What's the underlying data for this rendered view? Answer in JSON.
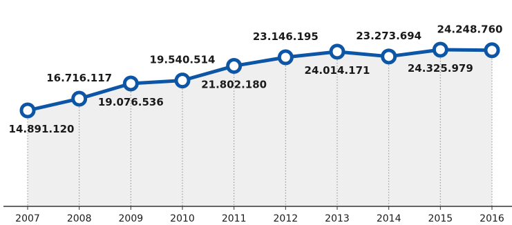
{
  "chart_data": {
    "type": "line",
    "categories": [
      "2007",
      "2008",
      "2009",
      "2010",
      "2011",
      "2012",
      "2013",
      "2014",
      "2015",
      "2016"
    ],
    "values": [
      14891120,
      16716117,
      19076536,
      19540514,
      21802180,
      23146195,
      24014171,
      23273694,
      24325979,
      24248760
    ],
    "data_labels": [
      "14.891.120",
      "16.716.117",
      "19.076.536",
      "19.540.514",
      "21.802.180",
      "23.146.195",
      "24.014.171",
      "23.273.694",
      "24.325.979",
      "24.248.760"
    ],
    "label_positions": [
      "below",
      "above",
      "below",
      "above",
      "below",
      "above",
      "below",
      "above",
      "below",
      "above"
    ],
    "title": "",
    "xlabel": "",
    "ylabel": "",
    "grid": "vertical-dotted",
    "colors": {
      "line": "#0d55a5",
      "marker_fill": "#ffffff",
      "area": "#efefef",
      "baseline": "#333333",
      "gridline": "#8a8a8a"
    }
  }
}
